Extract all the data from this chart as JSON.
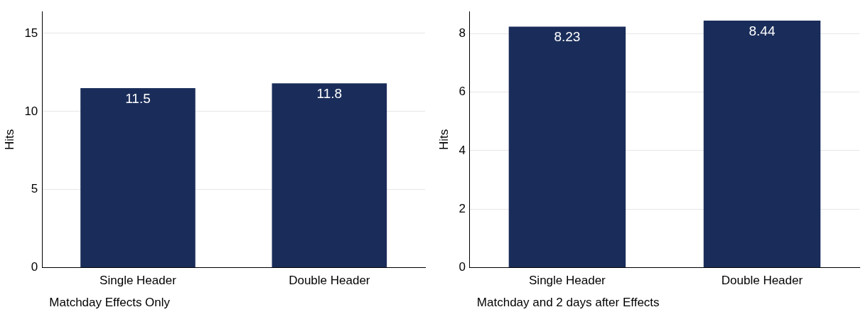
{
  "chart_data": [
    {
      "type": "bar",
      "ylabel": "Hits",
      "categories": [
        "Single Header",
        "Double Header"
      ],
      "values": [
        11.5,
        11.8
      ],
      "color": "#1a2d5a",
      "ylim": [
        0,
        16.4
      ],
      "yticks": [
        0,
        5,
        10,
        15
      ],
      "grid": "y",
      "data_labels": true,
      "legend": false,
      "annotations": [
        "Matchday Effects Only"
      ]
    },
    {
      "type": "bar",
      "ylabel": "Hits",
      "categories": [
        "Single Header",
        "Double Header"
      ],
      "values": [
        8.23,
        8.44
      ],
      "color": "#1a2d5a",
      "ylim": [
        0,
        8.75
      ],
      "yticks": [
        0,
        2,
        4,
        6,
        8
      ],
      "grid": "y",
      "data_labels": true,
      "legend": false,
      "annotations": [
        "Matchday and 2 days after Effects"
      ]
    }
  ]
}
